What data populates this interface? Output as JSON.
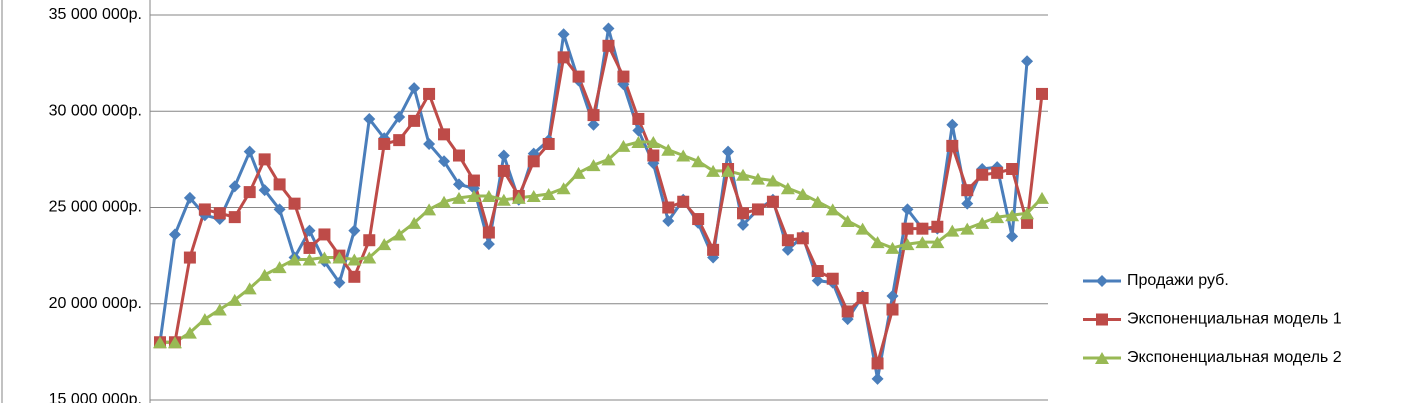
{
  "chart_data": {
    "type": "line",
    "ylim": [
      15000000,
      35000000
    ],
    "yticks": [
      {
        "value": 15000000,
        "label": "15 000 000р."
      },
      {
        "value": 20000000,
        "label": "20 000 000р."
      },
      {
        "value": 25000000,
        "label": "25 000 000р."
      },
      {
        "value": 30000000,
        "label": "30 000 000р."
      },
      {
        "value": 35000000,
        "label": "35 000 000р."
      }
    ],
    "grid": true,
    "legend": "right",
    "series": [
      {
        "name": "Продажи руб.",
        "color": "#4a7ebb",
        "marker": "diamond",
        "values": [
          18000000,
          23600000,
          25500000,
          24600000,
          24400000,
          26100000,
          27900000,
          25900000,
          24900000,
          22400000,
          23800000,
          22200000,
          21100000,
          23800000,
          29600000,
          28600000,
          29700000,
          31200000,
          28300000,
          27400000,
          26200000,
          26000000,
          23100000,
          27700000,
          25400000,
          27800000,
          28500000,
          34000000,
          31600000,
          29300000,
          34300000,
          31400000,
          29000000,
          27300000,
          24300000,
          25400000,
          24200000,
          22400000,
          27900000,
          24100000,
          24900000,
          25400000,
          22800000,
          23500000,
          21200000,
          21100000,
          19200000,
          20400000,
          16100000,
          20400000,
          24900000,
          23900000,
          23900000,
          29300000,
          25200000,
          27000000,
          27100000,
          23500000,
          32600000,
          null
        ]
      },
      {
        "name": "Экспоненциальная модель 1",
        "color": "#be4b48",
        "marker": "square",
        "values": [
          18000000,
          18000000,
          22400000,
          24900000,
          24700000,
          24500000,
          25800000,
          27500000,
          26200000,
          25200000,
          22900000,
          23600000,
          22500000,
          21400000,
          23300000,
          28300000,
          28500000,
          29500000,
          30900000,
          28800000,
          27700000,
          26400000,
          23700000,
          26900000,
          25600000,
          27400000,
          28300000,
          32800000,
          31800000,
          29800000,
          33400000,
          31800000,
          29600000,
          27700000,
          25000000,
          25300000,
          24400000,
          22800000,
          27000000,
          24700000,
          24900000,
          25300000,
          23300000,
          23400000,
          21700000,
          21300000,
          19600000,
          20300000,
          16900000,
          19700000,
          23900000,
          23900000,
          24000000,
          28200000,
          25900000,
          26700000,
          26800000,
          27000000,
          24200000,
          30900000
        ]
      },
      {
        "name": "Экспоненциальная модель 2",
        "color": "#98b954",
        "marker": "triangle",
        "values": [
          18000000,
          18000000,
          18500000,
          19200000,
          19700000,
          20200000,
          20800000,
          21500000,
          21900000,
          22300000,
          22300000,
          22400000,
          22400000,
          22300000,
          22400000,
          23100000,
          23600000,
          24200000,
          24900000,
          25300000,
          25500000,
          25600000,
          25600000,
          25400000,
          25500000,
          25600000,
          25700000,
          26000000,
          26800000,
          27200000,
          27500000,
          28200000,
          28400000,
          28400000,
          28000000,
          27700000,
          27400000,
          26900000,
          26900000,
          26700000,
          26500000,
          26400000,
          26000000,
          25700000,
          25300000,
          24900000,
          24300000,
          23900000,
          23200000,
          22900000,
          23100000,
          23200000,
          23200000,
          23800000,
          23900000,
          24200000,
          24500000,
          24600000,
          24700000,
          25500000
        ]
      }
    ]
  }
}
